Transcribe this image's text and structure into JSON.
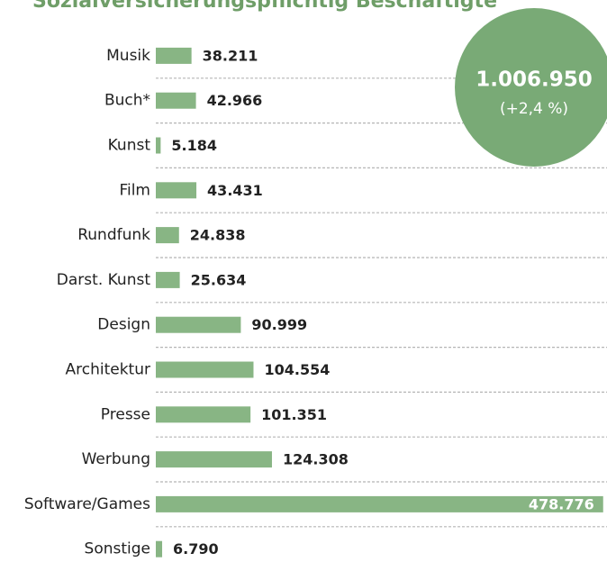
{
  "chart_data": {
    "type": "bar",
    "orientation": "horizontal",
    "title": "Sozialversicherungspflichtig Beschäftigte",
    "categories": [
      "Musik",
      "Buch*",
      "Kunst",
      "Film",
      "Rundfunk",
      "Darst. Kunst",
      "Design",
      "Architektur",
      "Presse",
      "Werbung",
      "Software/Games",
      "Sonstige"
    ],
    "values": [
      38211,
      42966,
      5184,
      43431,
      24838,
      25634,
      90999,
      104554,
      101351,
      124308,
      478776,
      6790
    ],
    "value_labels": [
      "38.211",
      "42.966",
      "5.184",
      "43.431",
      "24.838",
      "25.634",
      "90.999",
      "104.554",
      "101.351",
      "124.308",
      "478.776",
      "6.790"
    ],
    "color": "#88b584",
    "xlim": [
      0,
      480000
    ],
    "annotation": {
      "total": "1.006.950",
      "change": "(+2,4 %)",
      "color": "#79aa76"
    }
  }
}
